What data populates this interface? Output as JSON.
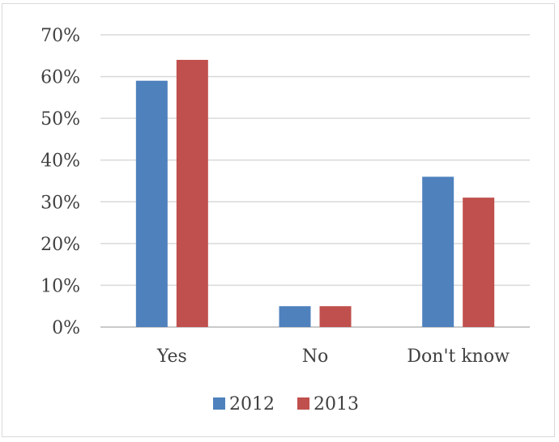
{
  "chart_data": {
    "type": "bar",
    "categories": [
      "Yes",
      "No",
      "Don't know"
    ],
    "series": [
      {
        "name": "2012",
        "values": [
          59,
          5,
          36
        ],
        "color": "#4f81bd"
      },
      {
        "name": "2013",
        "values": [
          64,
          5,
          31
        ],
        "color": "#c0504d"
      }
    ],
    "ylim": [
      0,
      70
    ],
    "yticks": [
      0,
      10,
      20,
      30,
      40,
      50,
      60,
      70
    ],
    "ytick_labels": [
      "0%",
      "10%",
      "20%",
      "30%",
      "40%",
      "50%",
      "60%",
      "70%"
    ],
    "grid": true,
    "legend_position": "bottom"
  }
}
